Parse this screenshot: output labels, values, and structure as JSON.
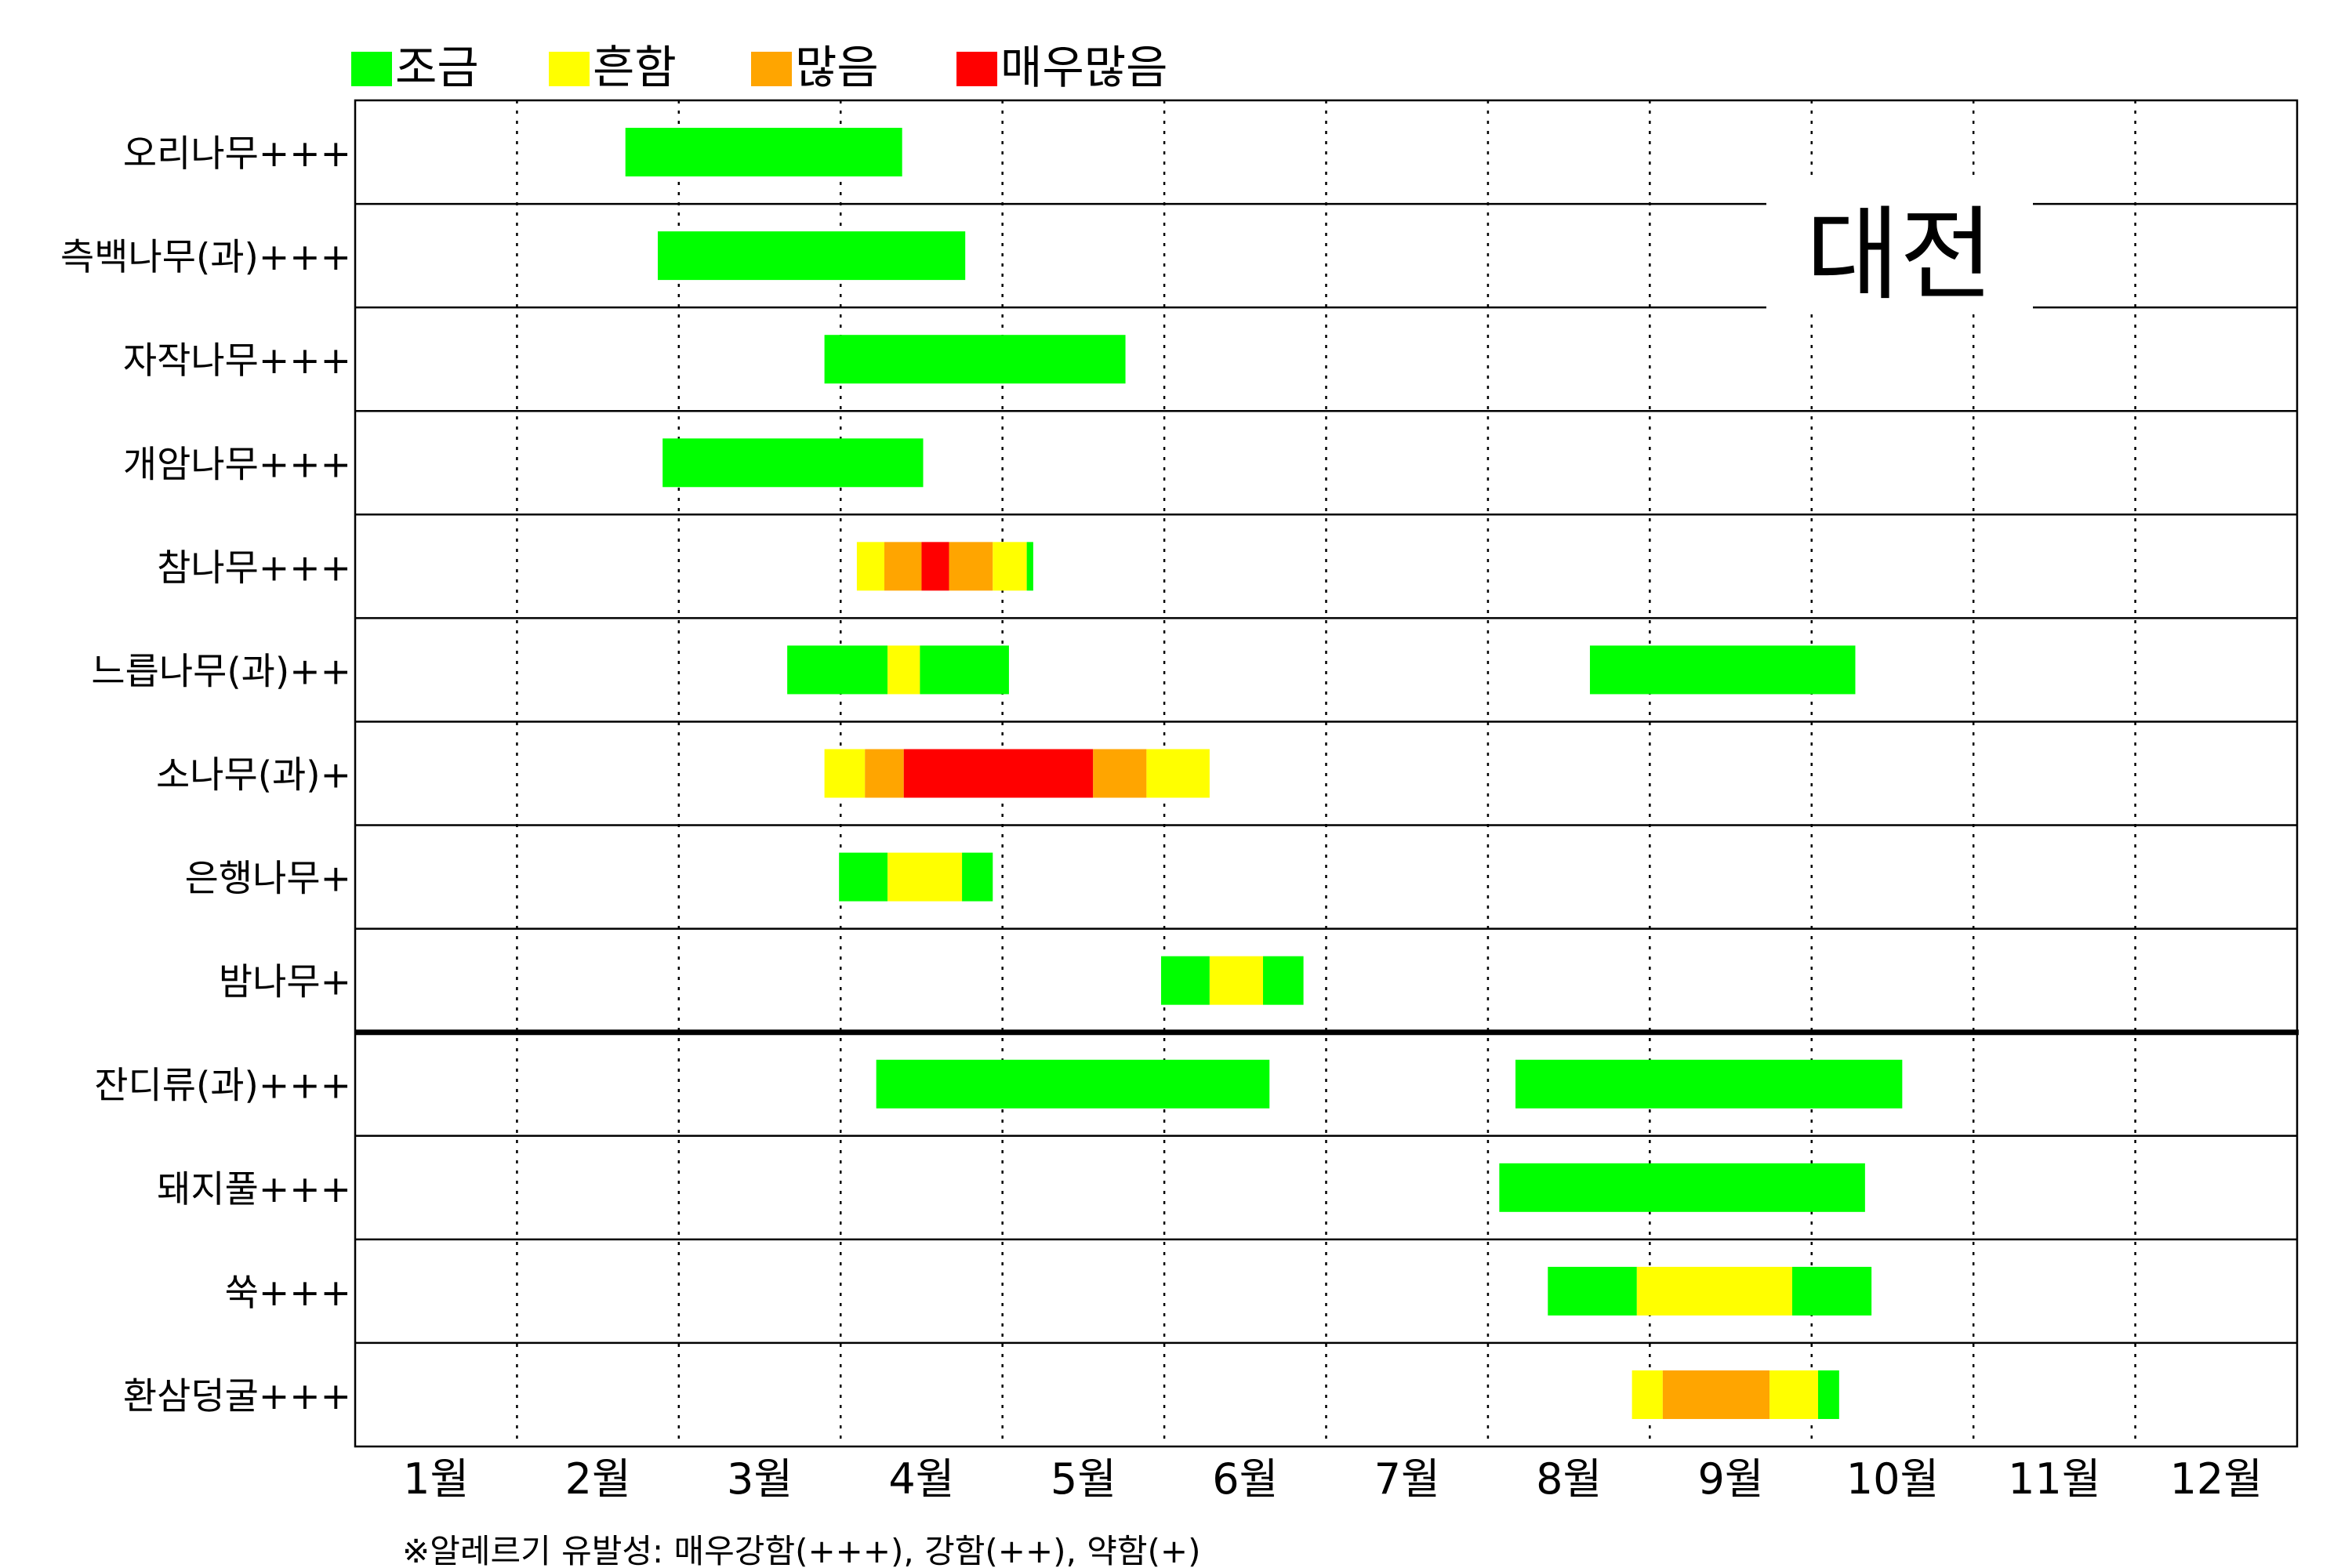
{
  "legend": {
    "items": [
      {
        "label": "조금",
        "color": "#00ff00"
      },
      {
        "label": "흔함",
        "color": "#ffff00"
      },
      {
        "label": "많음",
        "color": "#ffa500"
      },
      {
        "label": "매우많음",
        "color": "#ff0000"
      }
    ]
  },
  "region_label": "대전",
  "footnote": "※알레르기 유발성: 매우강함(+++), 강함(++), 약함(+)",
  "chart_data": {
    "type": "bar",
    "orientation": "horizontal-timeline",
    "x_unit": "month",
    "xlim": [
      1,
      13
    ],
    "month_labels": [
      "1월",
      "2월",
      "3월",
      "4월",
      "5월",
      "6월",
      "7월",
      "8월",
      "9월",
      "10월",
      "11월",
      "12월"
    ],
    "legend_placement": "top",
    "grid": "dotted month dividers",
    "level_colors": {
      "조금": "#00ff00",
      "흔함": "#ffff00",
      "많음": "#ffa500",
      "매우많음": "#ff0000"
    },
    "separator_after_row": 8,
    "rows": [
      {
        "name": "오리나무+++",
        "segments": [
          {
            "start": 2.67,
            "end": 4.38,
            "level": "조금"
          }
        ]
      },
      {
        "name": "측백나무(과)+++",
        "segments": [
          {
            "start": 2.87,
            "end": 4.77,
            "level": "조금"
          }
        ]
      },
      {
        "name": "자작나무+++",
        "segments": [
          {
            "start": 3.9,
            "end": 5.76,
            "level": "조금"
          }
        ]
      },
      {
        "name": "개암나무+++",
        "segments": [
          {
            "start": 2.9,
            "end": 4.51,
            "level": "조금"
          }
        ]
      },
      {
        "name": "참나무+++",
        "segments": [
          {
            "start": 4.1,
            "end": 4.27,
            "level": "흔함"
          },
          {
            "start": 4.27,
            "end": 4.5,
            "level": "많음"
          },
          {
            "start": 4.5,
            "end": 4.67,
            "level": "매우많음"
          },
          {
            "start": 4.67,
            "end": 4.94,
            "level": "많음"
          },
          {
            "start": 4.94,
            "end": 5.15,
            "level": "흔함"
          },
          {
            "start": 5.15,
            "end": 5.19,
            "level": "조금"
          }
        ]
      },
      {
        "name": "느릅나무(과)++",
        "segments": [
          {
            "start": 3.67,
            "end": 4.29,
            "level": "조금"
          },
          {
            "start": 4.29,
            "end": 4.49,
            "level": "흔함"
          },
          {
            "start": 4.49,
            "end": 5.04,
            "level": "조금"
          },
          {
            "start": 8.63,
            "end": 10.27,
            "level": "조금"
          }
        ]
      },
      {
        "name": "소나무(과)+",
        "segments": [
          {
            "start": 3.9,
            "end": 4.15,
            "level": "흔함"
          },
          {
            "start": 4.15,
            "end": 4.39,
            "level": "많음"
          },
          {
            "start": 4.39,
            "end": 5.56,
            "level": "매우많음"
          },
          {
            "start": 5.56,
            "end": 5.89,
            "level": "많음"
          },
          {
            "start": 5.89,
            "end": 6.28,
            "level": "흔함"
          }
        ]
      },
      {
        "name": "은행나무+",
        "segments": [
          {
            "start": 3.99,
            "end": 4.29,
            "level": "조금"
          },
          {
            "start": 4.29,
            "end": 4.75,
            "level": "흔함"
          },
          {
            "start": 4.75,
            "end": 4.94,
            "level": "조금"
          }
        ]
      },
      {
        "name": "밤나무+",
        "segments": [
          {
            "start": 5.98,
            "end": 6.28,
            "level": "조금"
          },
          {
            "start": 6.28,
            "end": 6.61,
            "level": "흔함"
          },
          {
            "start": 6.61,
            "end": 6.86,
            "level": "조금"
          }
        ]
      },
      {
        "name": "잔디류(과)+++",
        "segments": [
          {
            "start": 4.22,
            "end": 6.65,
            "level": "조금"
          },
          {
            "start": 8.17,
            "end": 10.56,
            "level": "조금"
          }
        ]
      },
      {
        "name": "돼지풀+++",
        "segments": [
          {
            "start": 8.07,
            "end": 10.33,
            "level": "조금"
          }
        ]
      },
      {
        "name": "쑥+++",
        "segments": [
          {
            "start": 8.37,
            "end": 8.92,
            "level": "조금"
          },
          {
            "start": 8.92,
            "end": 9.88,
            "level": "흔함"
          },
          {
            "start": 9.88,
            "end": 10.37,
            "level": "조금"
          }
        ]
      },
      {
        "name": "환삼덩굴+++",
        "segments": [
          {
            "start": 8.89,
            "end": 9.08,
            "level": "흔함"
          },
          {
            "start": 9.08,
            "end": 9.74,
            "level": "많음"
          },
          {
            "start": 9.74,
            "end": 10.04,
            "level": "흔함"
          },
          {
            "start": 10.04,
            "end": 10.17,
            "level": "조금"
          }
        ]
      }
    ]
  }
}
